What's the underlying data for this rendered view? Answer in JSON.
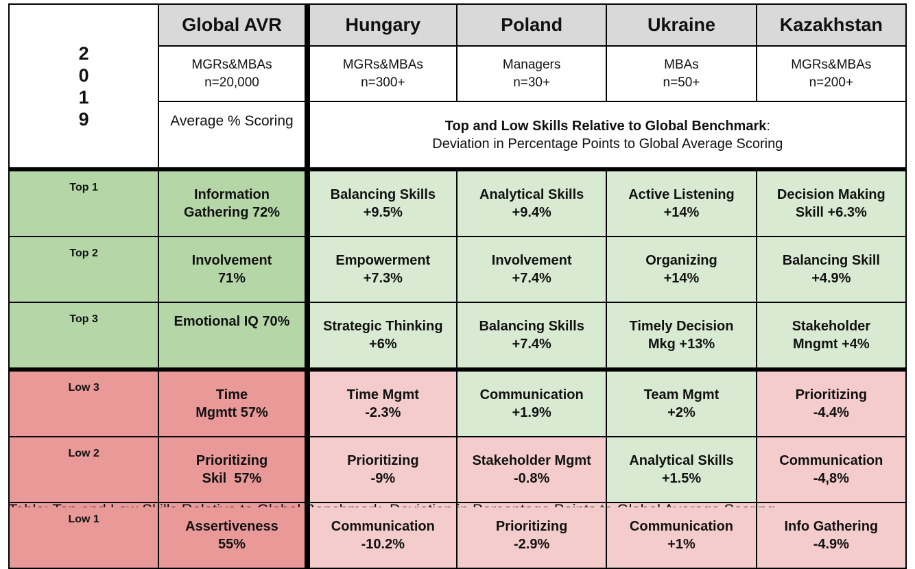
{
  "year_digits": [
    "2",
    "0",
    "1",
    "9"
  ],
  "header": {
    "global_title": "Global AVR",
    "global_sample_line1": "MGRs&MBAs",
    "global_sample_line2": "n=20,000",
    "average_label": "Average % Scoring",
    "deviation_title": "Top and Low Skills Relative to Global Benchmark",
    "deviation_colon": ":",
    "deviation_subtitle": "Deviation in Percentage Points to Global Average Scoring"
  },
  "countries": [
    {
      "name": "Hungary",
      "sample_line1": "MGRs&MBAs",
      "sample_line2": "n=300+"
    },
    {
      "name": "Poland",
      "sample_line1": "Managers",
      "sample_line2": "n=30+"
    },
    {
      "name": "Ukraine",
      "sample_line1": "MBAs",
      "sample_line2": "n=50+"
    },
    {
      "name": "Kazakhstan",
      "sample_line1": "MGRs&MBAs",
      "sample_line2": "n=200+"
    }
  ],
  "rows": [
    {
      "label": "Top 1",
      "global": [
        "Information",
        "Gathering 72%"
      ],
      "cells": [
        [
          "Balancing Skills",
          "+9.5%"
        ],
        [
          "Analytical Skills",
          "+9.4%"
        ],
        [
          "Active Listening",
          "+14%"
        ],
        [
          "Decision Making",
          "Skill +6.3%"
        ]
      ]
    },
    {
      "label": "Top 2",
      "global": [
        "Involvement",
        "71%"
      ],
      "cells": [
        [
          "Empowerment",
          "+7.3%"
        ],
        [
          "Involvement",
          "+7.4%"
        ],
        [
          "Organizing",
          "+14%"
        ],
        [
          "Balancing Skill",
          "+4.9%"
        ]
      ]
    },
    {
      "label": "Top 3",
      "global": [
        "Emotional IQ 70%",
        ""
      ],
      "cells": [
        [
          "Strategic Thinking",
          "+6%"
        ],
        [
          "Balancing Skills",
          "+7.4%"
        ],
        [
          "Timely Decision",
          "Mkg +13%"
        ],
        [
          "Stakeholder",
          "Mngmt +4%"
        ]
      ]
    },
    {
      "label": "Low 3",
      "global": [
        "Time",
        "Mgmtt 57%"
      ],
      "cells": [
        [
          "Time Mgmt",
          "-2.3%"
        ],
        [
          "Communication",
          "+1.9%"
        ],
        [
          "Team Mgmt",
          "+2%"
        ],
        [
          "Prioritizing",
          "-4.4%"
        ]
      ]
    },
    {
      "label": "Low 2",
      "global": [
        "Prioritizing",
        "Skil  57%"
      ],
      "cells": [
        [
          "Prioritizing",
          "-9%"
        ],
        [
          "Stakeholder Mgmt",
          "-0.8%"
        ],
        [
          "Analytical Skills",
          "+1.5%"
        ],
        [
          "Communication",
          "-4,8%"
        ]
      ]
    },
    {
      "label": "Low 1",
      "global": [
        "Assertiveness",
        "55%"
      ],
      "cells": [
        [
          "Communication",
          "-10.2%"
        ],
        [
          "Prioritizing",
          "-2.9%"
        ],
        [
          "Communication",
          "+1%"
        ],
        [
          "Info Gathering",
          "-4.9%"
        ]
      ]
    }
  ],
  "caption": "Table: Top and Low Skills Relative to Global Benchmark, Deviation in Percentage Points to Global Average Scoring"
}
